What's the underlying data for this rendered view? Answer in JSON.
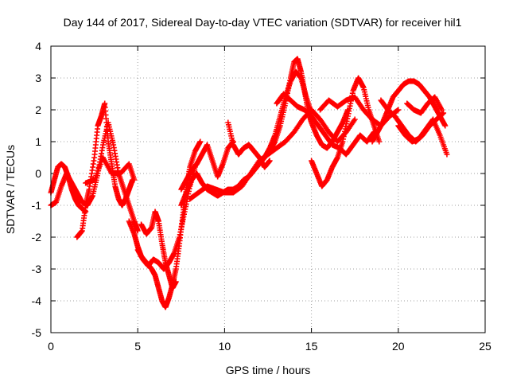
{
  "chart_data": {
    "type": "scatter",
    "title": "Day 144 of 2017, Sidereal Day-to-day VTEC variation (SDTVAR) for receiver hil1",
    "xlabel": "GPS time / hours",
    "ylabel": "SDTVAR / TECUs",
    "xlim": [
      0,
      25
    ],
    "ylim": [
      -5,
      4
    ],
    "xticks": [
      0,
      5,
      10,
      15,
      20,
      25
    ],
    "xtick_labels": [
      "0",
      "5",
      "10",
      "15",
      "20",
      "25"
    ],
    "yticks": [
      -5,
      -4,
      -3,
      -2,
      -1,
      0,
      1,
      2,
      3,
      4
    ],
    "ytick_labels": [
      "-5",
      "-4",
      "-3",
      "-2",
      "-1",
      "0",
      "1",
      "2",
      "3",
      "4"
    ],
    "grid": true,
    "marker": "plus",
    "color": "#ff0000",
    "series": [
      {
        "x": [
          0.0,
          0.3,
          0.6,
          0.9,
          1.2,
          1.5,
          1.8,
          2.1,
          2.4,
          2.7,
          3.0,
          3.3,
          3.6,
          3.9,
          4.2,
          4.5,
          4.8,
          5.0
        ],
        "y": [
          -1.0,
          -0.9,
          -0.4,
          0.0,
          -0.3,
          -0.6,
          -0.9,
          -1.0,
          -0.7,
          0.0,
          0.9,
          1.6,
          0.9,
          0.0,
          -0.5,
          -1.0,
          -1.5,
          -1.8
        ]
      },
      {
        "x": [
          0.0,
          0.2,
          0.4,
          0.6,
          0.8,
          1.0,
          1.2,
          1.4,
          1.6,
          1.8,
          2.0
        ],
        "y": [
          -0.6,
          -0.2,
          0.2,
          0.3,
          0.2,
          -0.1,
          -0.5,
          -0.8,
          -1.0,
          -1.1,
          -1.2
        ]
      },
      {
        "x": [
          1.5,
          1.8,
          2.0,
          2.2,
          2.5,
          2.7,
          2.9,
          3.1,
          3.3,
          3.5,
          3.7,
          3.9,
          4.1,
          4.3,
          4.5,
          4.7
        ],
        "y": [
          -2.0,
          -1.8,
          -1.0,
          -0.5,
          0.5,
          1.5,
          1.8,
          2.2,
          1.0,
          0.3,
          -0.4,
          -0.8,
          -1.0,
          -0.8,
          -0.5,
          -0.2
        ]
      },
      {
        "x": [
          2.0,
          2.5,
          3.0,
          3.5,
          4.0,
          4.5,
          4.8
        ],
        "y": [
          -0.3,
          -0.2,
          0.5,
          0.0,
          0.0,
          0.3,
          -0.2
        ]
      },
      {
        "x": [
          4.5,
          4.8,
          5.0,
          5.2,
          5.5,
          5.8,
          6.0,
          6.2,
          6.4,
          6.6,
          6.8,
          7.0,
          7.2,
          7.4,
          7.6,
          7.8,
          8.0,
          8.3,
          8.6
        ],
        "y": [
          -1.5,
          -1.9,
          -2.3,
          -2.6,
          -2.8,
          -3.0,
          -3.2,
          -3.6,
          -4.0,
          -4.2,
          -3.9,
          -3.5,
          -3.0,
          -2.2,
          -1.3,
          -0.5,
          0.2,
          0.7,
          1.0
        ]
      },
      {
        "x": [
          5.0,
          5.3,
          5.6,
          5.9,
          6.2,
          6.5,
          6.8,
          7.1,
          7.4,
          7.7,
          8.0,
          8.3
        ],
        "y": [
          -2.4,
          -2.7,
          -2.9,
          -2.7,
          -2.8,
          -3.0,
          -2.8,
          -2.5,
          -2.0,
          -1.2,
          -0.4,
          0.2
        ]
      },
      {
        "x": [
          5.2,
          5.5,
          5.8,
          6.0,
          6.2,
          6.4,
          6.6,
          6.8,
          7.0,
          7.2
        ],
        "y": [
          -1.6,
          -1.9,
          -1.7,
          -1.2,
          -1.5,
          -2.2,
          -2.8,
          -3.2,
          -3.6,
          -3.4
        ]
      },
      {
        "x": [
          7.5,
          7.8,
          8.1,
          8.4,
          8.7,
          9.0,
          9.3,
          9.6,
          9.9,
          10.2,
          10.5,
          10.8,
          11.1,
          11.4,
          11.7,
          12.0,
          12.3,
          12.6,
          12.9,
          13.2,
          13.5,
          13.8,
          14.1,
          14.4,
          14.7,
          15.0
        ],
        "y": [
          -1.0,
          -0.6,
          -0.2,
          0.0,
          -0.3,
          -0.5,
          -0.6,
          -0.7,
          -0.6,
          -0.5,
          -0.5,
          -0.4,
          -0.2,
          -0.1,
          0.1,
          0.3,
          0.5,
          0.8,
          1.2,
          1.8,
          2.4,
          2.9,
          3.2,
          3.0,
          2.4,
          1.9
        ]
      },
      {
        "x": [
          7.5,
          7.8,
          8.1,
          8.4,
          8.7,
          9.0,
          9.3,
          9.6,
          9.9,
          10.2,
          10.5
        ],
        "y": [
          -0.5,
          -0.2,
          0.1,
          0.3,
          0.6,
          0.9,
          0.4,
          -0.1,
          0.3,
          0.8,
          1.0
        ]
      },
      {
        "x": [
          8.0,
          8.5,
          9.0,
          9.5,
          10.0,
          10.5,
          11.0,
          11.5,
          12.0,
          12.5,
          13.0,
          13.5,
          14.0,
          14.5,
          15.0,
          15.5,
          16.0,
          16.5,
          17.0,
          17.5
        ],
        "y": [
          -0.8,
          -0.6,
          -0.4,
          -0.5,
          -0.6,
          -0.6,
          -0.4,
          0.0,
          0.4,
          0.6,
          0.8,
          1.0,
          1.3,
          1.7,
          2.0,
          1.7,
          1.3,
          1.0,
          1.3,
          1.7
        ]
      },
      {
        "x": [
          10.2,
          10.5,
          10.8,
          11.1,
          11.4,
          11.7,
          12.0,
          12.3,
          12.6
        ],
        "y": [
          1.6,
          0.9,
          0.6,
          0.8,
          0.9,
          0.7,
          0.5,
          0.2,
          0.4
        ]
      },
      {
        "x": [
          12.6,
          12.9,
          13.2,
          13.5,
          13.8,
          14.0,
          14.2,
          14.4,
          14.6,
          14.8,
          15.0,
          15.3,
          15.6,
          15.9,
          16.2,
          16.5,
          16.8,
          17.1
        ],
        "y": [
          0.7,
          1.0,
          1.5,
          2.2,
          3.0,
          3.5,
          3.6,
          3.2,
          2.6,
          2.0,
          1.6,
          1.2,
          0.9,
          0.8,
          1.0,
          1.3,
          1.6,
          2.0
        ]
      },
      {
        "x": [
          13.0,
          13.4,
          13.8,
          14.2,
          14.6,
          15.0,
          15.4,
          15.8,
          16.2,
          16.6,
          17.0,
          17.4,
          17.8,
          18.2,
          18.6
        ],
        "y": [
          2.2,
          2.5,
          2.3,
          2.1,
          2.0,
          1.8,
          1.5,
          1.2,
          0.9,
          0.8,
          0.6,
          0.9,
          1.2,
          1.0,
          1.3
        ]
      },
      {
        "x": [
          15.0,
          15.3,
          15.6,
          15.9,
          16.2,
          16.5,
          16.8,
          17.1,
          17.4,
          17.7,
          18.0,
          18.3,
          18.6,
          18.9
        ],
        "y": [
          0.4,
          0.0,
          -0.4,
          -0.2,
          0.2,
          0.5,
          1.0,
          1.8,
          2.6,
          3.0,
          2.7,
          2.0,
          1.5,
          1.0
        ]
      },
      {
        "x": [
          15.5,
          16.0,
          16.5,
          17.0,
          17.5,
          18.0,
          18.5,
          19.0,
          19.5,
          20.0
        ],
        "y": [
          2.0,
          2.3,
          2.1,
          2.3,
          2.4,
          2.0,
          1.7,
          1.5,
          1.8,
          2.0
        ]
      },
      {
        "x": [
          18.5,
          18.8,
          19.1,
          19.4,
          19.7,
          20.0,
          20.3,
          20.6,
          20.9,
          21.2,
          21.5,
          21.8,
          22.1,
          22.4,
          22.7
        ],
        "y": [
          1.0,
          1.3,
          1.6,
          2.0,
          2.4,
          2.6,
          2.8,
          2.9,
          2.9,
          2.8,
          2.6,
          2.4,
          2.1,
          1.8,
          1.5
        ]
      },
      {
        "x": [
          19.0,
          19.4,
          19.8,
          20.2,
          20.6,
          21.0,
          21.4,
          21.8,
          22.2,
          22.6
        ],
        "y": [
          2.3,
          2.0,
          1.8,
          1.5,
          1.2,
          1.0,
          1.2,
          1.5,
          1.7,
          1.9
        ]
      },
      {
        "x": [
          20.0,
          20.4,
          20.8,
          21.2,
          21.6,
          22.0,
          22.4,
          22.8
        ],
        "y": [
          1.5,
          1.2,
          1.0,
          1.1,
          1.4,
          1.7,
          1.2,
          0.6
        ]
      },
      {
        "x": [
          20.5,
          20.9,
          21.3,
          21.7,
          22.1,
          22.5
        ],
        "y": [
          2.2,
          2.0,
          1.9,
          2.2,
          2.4,
          2.0
        ]
      }
    ]
  }
}
